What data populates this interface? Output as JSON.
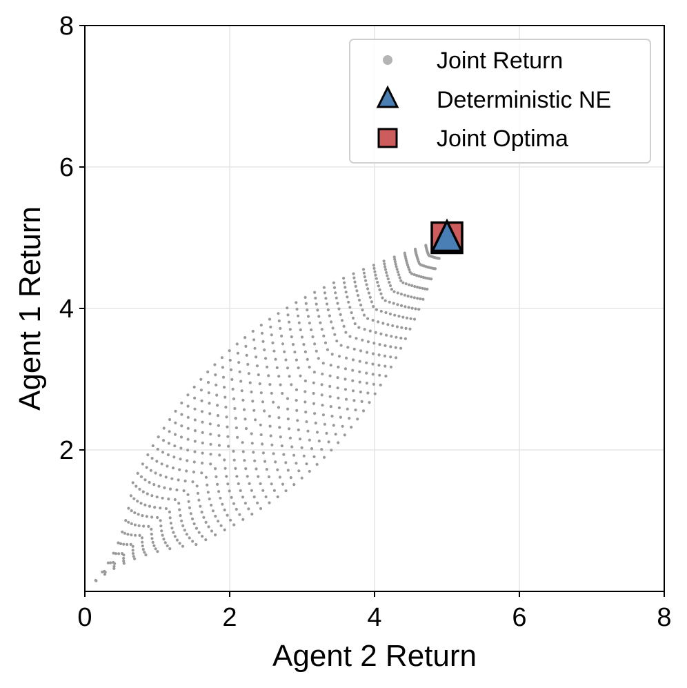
{
  "chart_data": {
    "type": "scatter",
    "xlabel": "Agent 2 Return",
    "ylabel": "Agent 1 Return",
    "xlim": [
      0,
      8
    ],
    "ylim": [
      0,
      8
    ],
    "xticks": [
      "0",
      "2",
      "4",
      "6",
      "8"
    ],
    "yticks": [
      "2",
      "4",
      "6",
      "8"
    ],
    "grid": true,
    "legend_position": "top-right",
    "series": [
      {
        "name": "Joint Return",
        "marker": "dot",
        "color": "#9a9a9a",
        "region_description_source": "joint returns of policy mixtures between (0,0) and (5,5)",
        "shape": "lens",
        "curves": 20,
        "points_per_curve": 40,
        "x_range": [
          0.1,
          5.0
        ],
        "y_range": [
          0.1,
          5.0
        ]
      },
      {
        "name": "Deterministic NE",
        "marker": "triangle",
        "color": "#4a7fb5",
        "points": [
          {
            "x": 5,
            "y": 5
          }
        ]
      },
      {
        "name": "Joint Optima",
        "marker": "square",
        "color": "#cd5c5c",
        "points": [
          {
            "x": 5,
            "y": 5
          }
        ]
      }
    ]
  },
  "legend": {
    "items": [
      {
        "label": "Joint Return",
        "marker": "dot",
        "color": "#b4b4b4"
      },
      {
        "label": "Deterministic NE",
        "marker": "triangle",
        "color": "#4a7fb5"
      },
      {
        "label": "Joint Optima",
        "marker": "square",
        "color": "#cd5c5c"
      }
    ]
  }
}
